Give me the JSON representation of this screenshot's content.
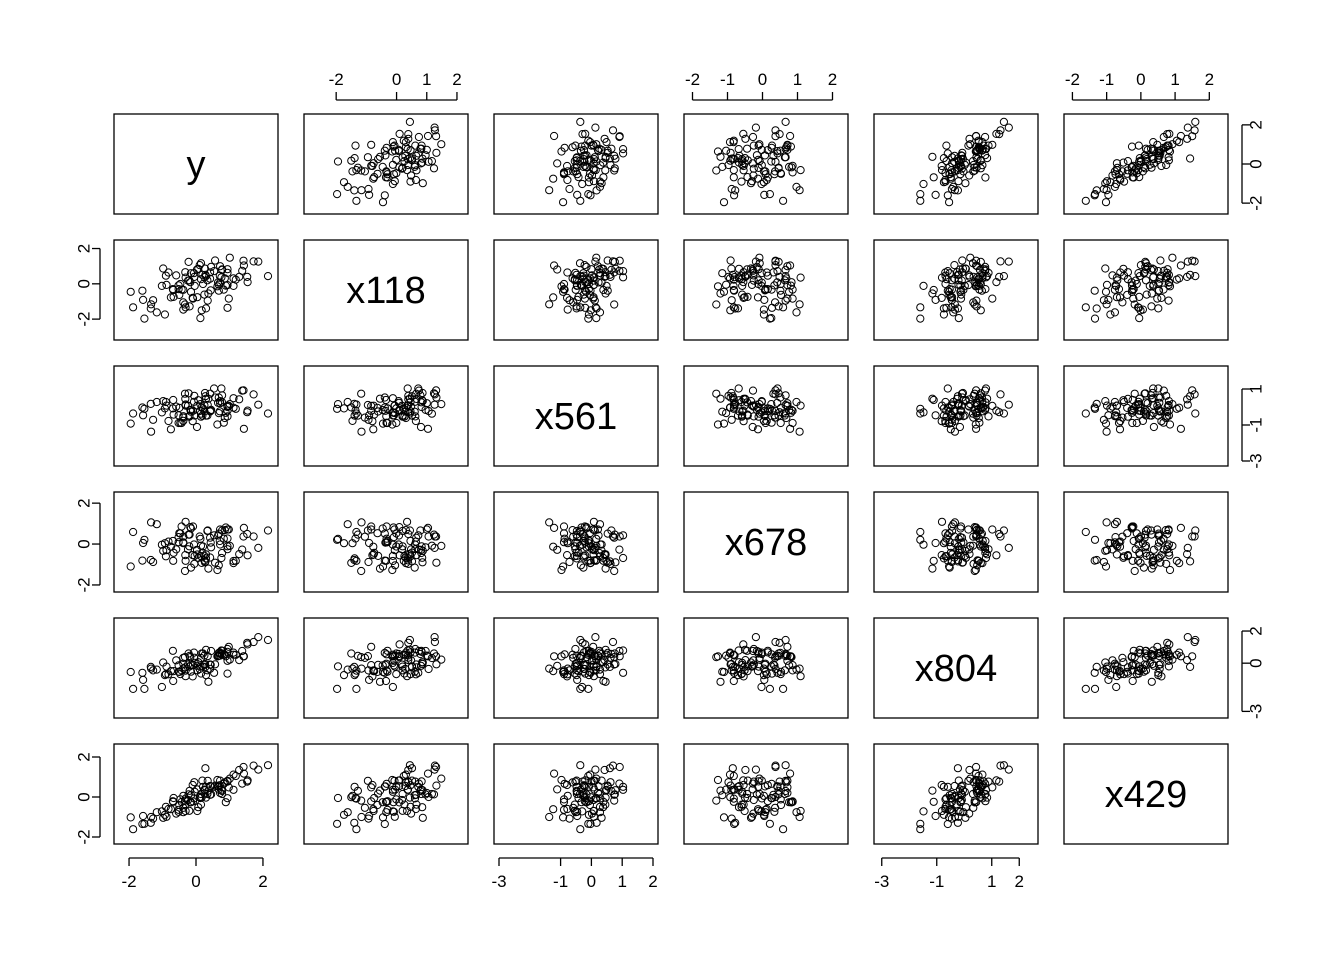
{
  "chart_data": {
    "type": "scatter",
    "subtype": "scatterplot-matrix",
    "title": "",
    "variables": [
      "y",
      "x118",
      "x561",
      "x678",
      "x804",
      "x429"
    ],
    "axis_ticks": {
      "y": [
        "-2",
        "0",
        "2"
      ],
      "x118": [
        "-2",
        "0",
        "1",
        "2"
      ],
      "x561": [
        "-3",
        "-1",
        "0",
        "1",
        "2"
      ],
      "x678": [
        "-2",
        "-1",
        "0",
        "1",
        "2"
      ],
      "x804": [
        "-3",
        "-1",
        "1",
        "2"
      ],
      "x429": [
        "-2",
        "-1",
        "0",
        "1",
        "2"
      ]
    },
    "axis_tick_values": {
      "y": [
        -2,
        0,
        2
      ],
      "x118": [
        -2,
        0,
        1,
        2
      ],
      "x561": [
        -3,
        -1,
        0,
        1,
        2
      ],
      "x678": [
        -2,
        -1,
        0,
        1,
        2
      ],
      "x804": [
        -3,
        -1,
        1,
        2
      ],
      "x429": [
        -2,
        -1,
        0,
        1,
        2
      ]
    },
    "y_axis_ticks": {
      "y": [
        "-2",
        "0",
        "2"
      ],
      "x118": [
        "-2",
        "0",
        "2"
      ],
      "x561": [
        "-3",
        "-1",
        "1"
      ],
      "x678": [
        "-2",
        "0",
        "2"
      ],
      "x804": [
        "-3",
        "0",
        "2"
      ],
      "x429": [
        "-2",
        "0",
        "2"
      ]
    },
    "y_axis_tick_values": {
      "y": [
        -2,
        0,
        2
      ],
      "x118": [
        -2,
        0,
        2
      ],
      "x561": [
        -3,
        -1,
        1
      ],
      "x678": [
        -2,
        0,
        2
      ],
      "x804": [
        -3,
        0,
        2
      ],
      "x429": [
        -2,
        0,
        2
      ]
    },
    "ranges": {
      "y": [
        -2.3,
        2.3
      ],
      "x118": [
        -2.9,
        2.2
      ],
      "x561": [
        -3.0,
        2.0
      ],
      "x678": [
        -2.1,
        2.3
      ],
      "x804": [
        -3.1,
        2.5
      ],
      "x429": [
        -2.1,
        2.4
      ]
    },
    "axis_sides": {
      "top_cols": [
        1,
        3,
        5
      ],
      "bottom_cols": [
        0,
        2,
        4
      ],
      "left_rows": [
        1,
        3,
        5
      ],
      "right_rows": [
        0,
        2,
        4
      ]
    },
    "n_points": 100,
    "point_style": "open-circle",
    "data": {
      "y": [
        -0.38,
        -0.59,
        1.38,
        0.78,
        -0.9,
        0.25,
        -0.52,
        -0.69,
        0.78,
        0.94,
        0.04,
        -0.05,
        -1.34,
        0.71,
        0.72,
        -0.75,
        -0.24,
        2.15,
        0.98,
        0.19,
        0.28,
        1.72,
        0.72,
        0.89,
        1.42,
        -0.15,
        0.34,
        -0.09,
        0.15,
        0.17,
        -0.67,
        -0.43,
        -1.95,
        0.37,
        1.12,
        -0.33,
        -0.31,
        -0.19,
        0.54,
        1.54,
        -0.82,
        0.44,
        0.15,
        0.68,
        0.94,
        0.3,
        -0.22,
        0.42,
        -0.47,
        0.35,
        0.86,
        0.21,
        0.3,
        0.07,
        -1.54,
        0.94,
        -0.1,
        -0.5,
        0.03,
        -0.2,
        -0.88,
        -0.17,
        -0.68,
        0.13,
        0.64,
        0.76,
        -1.58,
        -0.38,
        -0.06,
        0.11,
        1.43,
        -0.93,
        -0.98,
        1.29,
        0.45,
        -1.28,
        -0.31,
        0.83,
        0.27,
        -1.02,
        -0.38,
        -0.04,
        -1.17,
        -0.15,
        0.57,
        -0.52,
        0.42,
        0.66,
        0.68,
        1.12,
        0.94,
        0.25,
        1.53,
        -1.35,
        -1.6,
        1.01,
        1.19,
        1.86,
        -0.32,
        -1.88
      ],
      "x118": [
        -0.34,
        0.48,
        0.74,
        0.79,
        0.46,
        0.38,
        -0.3,
        -0.3,
        0.82,
        -1.36,
        -0.76,
        0.39,
        -1.16,
        0.46,
        0.07,
        -0.77,
        0.18,
        0.44,
        -0.84,
        0.51,
        0.51,
        1.27,
        1.0,
        -0.1,
        1.31,
        -0.46,
        0.2,
        -0.84,
        0.26,
        -1.5,
        -0.74,
        -0.33,
        -0.45,
        -0.55,
        -0.12,
        -1.17,
        0.35,
        -1.28,
        0.72,
        0.1,
        0.64,
        -0.37,
        1.17,
        -0.05,
        0.62,
        -1.39,
        1.24,
        0.29,
        -0.01,
        -0.95,
        0.31,
        -0.01,
        0.44,
        0.85,
        -1.97,
        -0.07,
        -0.8,
        -0.63,
        0.81,
        0.2,
        -0.06,
        0.09,
        -0.35,
        -1.94,
        -0.14,
        0.37,
        -0.91,
        -1.46,
        0.61,
        1.06,
        1.04,
        -1.74,
        0.87,
        0.39,
        0.96,
        -0.93,
        -1.33,
        -0.33,
        0.86,
        -0.12,
        -1.05,
        -0.12,
        -1.62,
        0.6,
        1.32,
        -0.09,
        0.65,
        0.08,
        -0.39,
        0.31,
        0.83,
        -0.61,
        0.39,
        -1.4,
        -0.39,
        1.48,
        0.24,
        1.26,
        0.66,
        -1.33
      ],
      "x561": [
        -0.51,
        0.02,
        0.91,
        0.65,
        0.28,
        0.09,
        -0.89,
        -0.08,
        0.26,
        -0.2,
        0.07,
        0.62,
        -1.37,
        -0.24,
        0.33,
        -1.24,
        0.07,
        -0.36,
        0.06,
        -0.48,
        0.6,
        0.7,
        0.21,
        -0.32,
        0.92,
        -0.17,
        -0.47,
        -0.21,
        -0.54,
        -0.02,
        -0.42,
        -0.89,
        -0.92,
        0.46,
        0.49,
        0.74,
        0.08,
        -0.48,
        1.03,
        -0.2,
        -0.78,
        -0.21,
        -0.37,
        -0.34,
        -0.52,
        -0.48,
        0.76,
        -0.25,
        -0.89,
        0.11,
        -0.61,
        -0.08,
        0.46,
        0.38,
        -0.1,
        0.07,
        -0.79,
        -0.05,
        -1.11,
        -0.54,
        0.08,
        -0.16,
        0.39,
        0.16,
        -0.97,
        1.03,
        -0.46,
        -0.77,
        0.29,
        -0.22,
        -1.21,
        -0.08,
        0.33,
        0.43,
        -0.16,
        -0.71,
        0.14,
        -0.87,
        0.78,
        -0.3,
        -0.59,
        -0.47,
        0.28,
        -0.26,
        0.53,
        -0.46,
        0.74,
        0.23,
        0.53,
        -0.04,
        0.0,
        -0.25,
        -0.29,
        0.17,
        -0.03,
        0.16,
        -0.1,
        0.13,
        0.45,
        -0.36
      ],
      "x678": [
        0.08,
        -0.26,
        -0.27,
        0.66,
        -0.6,
        -0.8,
        0.09,
        0.15,
        -0.44,
        0.27,
        -0.51,
        -0.97,
        1.06,
        0.15,
        -0.02,
        -0.13,
        -0.25,
        0.66,
        0.71,
        -0.42,
        -0.85,
        0.37,
        0.71,
        0.81,
        0.37,
        0.76,
        0.64,
        0.86,
        -0.59,
        -0.92,
        -0.43,
        0.86,
        -1.1,
        -1.2,
        -0.83,
        -1.32,
        1.09,
        0.46,
        0.43,
        -0.55,
        0.12,
        0.07,
        -0.08,
        -1.04,
        -0.25,
        -0.7,
        0.46,
        -0.66,
        0.52,
        0.66,
        0.68,
        -0.12,
        -0.5,
        -0.67,
        0.21,
        0.71,
        -0.54,
        0.53,
        -0.28,
        -0.11,
        -0.3,
        0.83,
        -0.82,
        0.25,
        -1.27,
        -0.68,
        0.05,
        0.04,
        -0.02,
        0.37,
        0.79,
        0.04,
        -0.33,
        -0.49,
        -0.16,
        -0.88,
        -0.82,
        0.26,
        -0.89,
        -0.03,
        0.36,
        -0.58,
        0.97,
        -1.15,
        -0.91,
        0.34,
        0.31,
        0.42,
        0.51,
        -0.93,
        -0.11,
        -0.58,
        0.49,
        -0.78,
        -0.81,
        -0.09,
        -0.82,
        -0.19,
        -0.54,
        0.59
      ],
      "x804": [
        -0.03,
        0.18,
        0.76,
        0.57,
        -0.68,
        0.48,
        -0.53,
        0.77,
        0.77,
        -0.65,
        -0.44,
        0.34,
        -0.34,
        0.67,
        0.57,
        -0.49,
        -0.09,
        1.44,
        1.02,
        -0.2,
        -0.23,
        1.32,
        0.47,
        0.43,
        0.43,
        -0.14,
        -0.44,
        -0.12,
        -0.64,
        0.6,
        -0.49,
        -0.45,
        -0.55,
        -1.16,
        0.53,
        0.38,
        -0.81,
        0.45,
        -0.6,
        1.17,
        -0.69,
        -0.11,
        0.32,
        0.47,
        0.88,
        -0.74,
        0.6,
        -0.35,
        -0.68,
        0.44,
        0.53,
        0.6,
        0.83,
        0.06,
        -1.6,
        0.15,
        -0.82,
        -0.54,
        -0.16,
        -0.21,
        -0.21,
        0.38,
        -1.11,
        -0.2,
        0.42,
        0.79,
        -1.04,
        -0.34,
        0.66,
        -0.36,
        0.43,
        -0.74,
        0.04,
        0.19,
        0.76,
        -0.45,
        -0.46,
        0.55,
        -0.05,
        -1.48,
        0.33,
        0.02,
        -0.4,
        -0.53,
        -0.07,
        -0.14,
        -0.08,
        0.44,
        0.64,
        0.66,
        0.7,
        -0.11,
        1.27,
        -0.23,
        -0.6,
        0.22,
        0.52,
        1.62,
        -0.26,
        -1.6
      ],
      "x429": [
        -0.76,
        -0.83,
        0.67,
        0.3,
        -0.49,
        0.37,
        -0.64,
        -0.21,
        0.15,
        -0.06,
        -0.7,
        0.74,
        -1.0,
        0.59,
        0.82,
        -0.61,
        -0.15,
        1.59,
        0.48,
        0.82,
        1.44,
        1.57,
        0.2,
        -0.26,
        1.5,
        -0.26,
        0.15,
        -0.22,
        -0.38,
        -0.01,
        -0.05,
        -0.25,
        -1.02,
        0.32,
        0.36,
        -0.18,
        -0.7,
        0.31,
        0.51,
        0.83,
        -0.6,
        0.53,
        0.15,
        0.37,
        0.77,
        0.51,
        0.13,
        0.55,
        -0.12,
        0.81,
        0.73,
        0.51,
        -0.03,
        -0.51,
        -1.34,
        0.81,
        0.6,
        -0.4,
        0.38,
        -0.69,
        -0.99,
        -0.27,
        -0.24,
        -0.05,
        0.85,
        0.36,
        -0.95,
        0.06,
        -0.07,
        0.0,
        1.17,
        -0.89,
        -1.04,
        1.35,
        0.13,
        -1.08,
        -0.08,
        0.66,
        0.34,
        -0.72,
        -0.54,
        0.26,
        -0.76,
        0.09,
        0.57,
        -0.74,
        0.11,
        0.54,
        0.52,
        1.12,
        0.78,
        0.17,
        0.77,
        -1.29,
        -1.35,
        0.92,
        1.05,
        1.37,
        -0.38,
        -1.61
      ]
    }
  }
}
